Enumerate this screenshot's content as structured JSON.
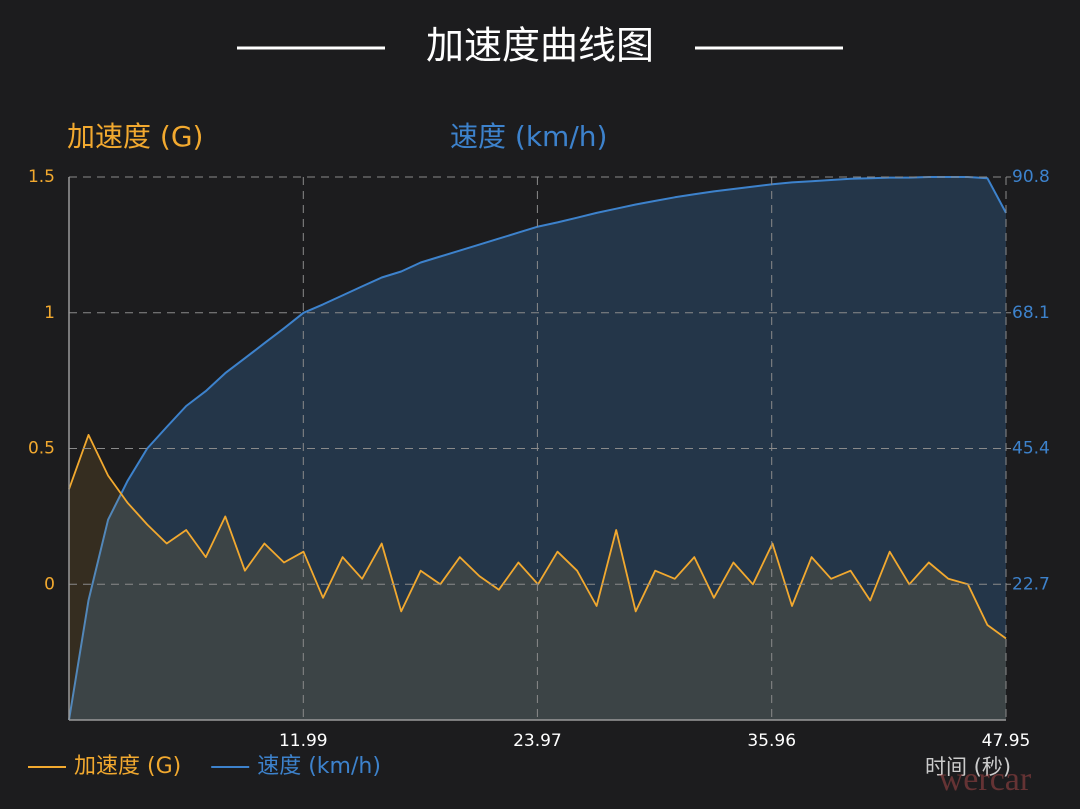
{
  "chart_data": {
    "type": "line",
    "title": "加速度曲线图",
    "y_label": "加速度 (G)",
    "y2_label": "速度 (km/h)",
    "x_label": "时间 (秒)",
    "watermark": "wercar",
    "x": [
      0,
      1,
      2,
      3,
      4,
      5,
      6,
      7,
      8,
      9,
      10,
      11,
      12,
      13,
      14,
      15,
      16,
      17,
      18,
      19,
      20,
      21,
      22,
      23,
      24,
      25,
      26,
      27,
      28,
      29,
      30,
      31,
      32,
      33,
      34,
      35,
      36,
      37,
      38,
      39,
      40,
      41,
      42,
      43,
      44,
      45,
      46,
      47,
      47.95
    ],
    "xlim": [
      0,
      47.95
    ],
    "xticks": [
      11.99,
      23.97,
      35.96,
      47.95
    ],
    "ylim": [
      -0.5,
      1.5
    ],
    "yticks": [
      1.5,
      1.0,
      0.5,
      0.0
    ],
    "y2lim": [
      0,
      90.8
    ],
    "y2ticks": [
      90.8,
      68.1,
      45.4,
      22.7
    ],
    "grid": true,
    "series": [
      {
        "name": "加速度 (G)",
        "color": "#f2a92f",
        "axis": "y",
        "values": [
          0.35,
          0.55,
          0.4,
          0.3,
          0.22,
          0.15,
          0.2,
          0.1,
          0.25,
          0.05,
          0.15,
          0.08,
          0.12,
          -0.05,
          0.1,
          0.02,
          0.15,
          -0.1,
          0.05,
          0.0,
          0.1,
          0.03,
          -0.02,
          0.08,
          0.0,
          0.12,
          0.05,
          -0.08,
          0.2,
          -0.1,
          0.05,
          0.02,
          0.1,
          -0.05,
          0.08,
          0.0,
          0.15,
          -0.08,
          0.1,
          0.02,
          0.05,
          -0.06,
          0.12,
          0.0,
          0.08,
          0.02,
          0.0,
          -0.15,
          -0.2
        ]
      },
      {
        "name": "速度 (km/h)",
        "color": "#3d82cc",
        "axis": "y2",
        "values": [
          0,
          20,
          33.5,
          40,
          45.4,
          49,
          52.5,
          55,
          58,
          60.5,
          63,
          65.5,
          68.1,
          69.5,
          71,
          72.5,
          74,
          75,
          76.5,
          77.5,
          78.5,
          79.5,
          80.5,
          81.5,
          82.5,
          83.2,
          84,
          84.8,
          85.5,
          86.2,
          86.8,
          87.4,
          87.9,
          88.4,
          88.8,
          89.2,
          89.6,
          89.9,
          90.1,
          90.3,
          90.5,
          90.6,
          90.7,
          90.7,
          90.8,
          90.8,
          90.8,
          90.6,
          84.8
        ]
      }
    ]
  }
}
